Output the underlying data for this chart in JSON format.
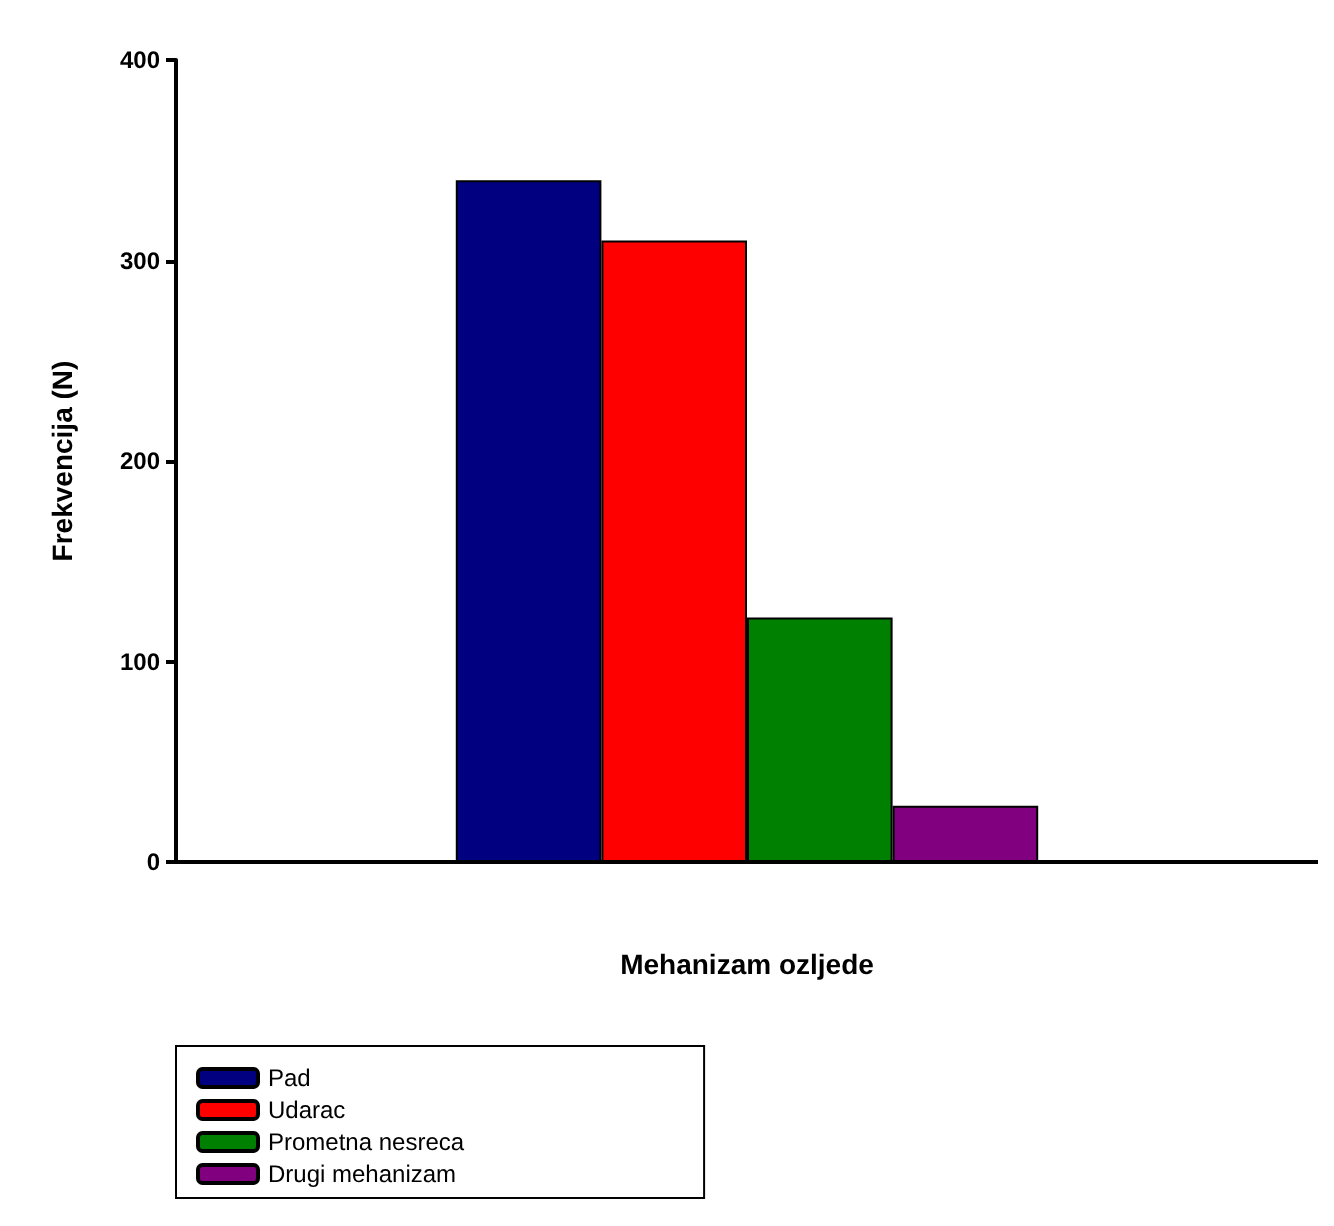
{
  "chart_data": {
    "type": "bar",
    "xlabel": "Mehanizam ozljede",
    "ylabel": "Frekvencija (N)",
    "categories": [
      null
    ],
    "series": [
      {
        "name": "Pad",
        "color": "#000080",
        "values": [
          340
        ]
      },
      {
        "name": "Udarac",
        "color": "#ff0000",
        "values": [
          310
        ]
      },
      {
        "name": "Prometna nesreca",
        "color": "#008000",
        "values": [
          122
        ]
      },
      {
        "name": "Drugi mehanizam",
        "color": "#800080",
        "values": [
          28
        ]
      }
    ],
    "ylim": [
      0,
      400
    ],
    "yticks": [
      0,
      100,
      200,
      300,
      400
    ],
    "grid": false,
    "legend": "bottom left"
  }
}
